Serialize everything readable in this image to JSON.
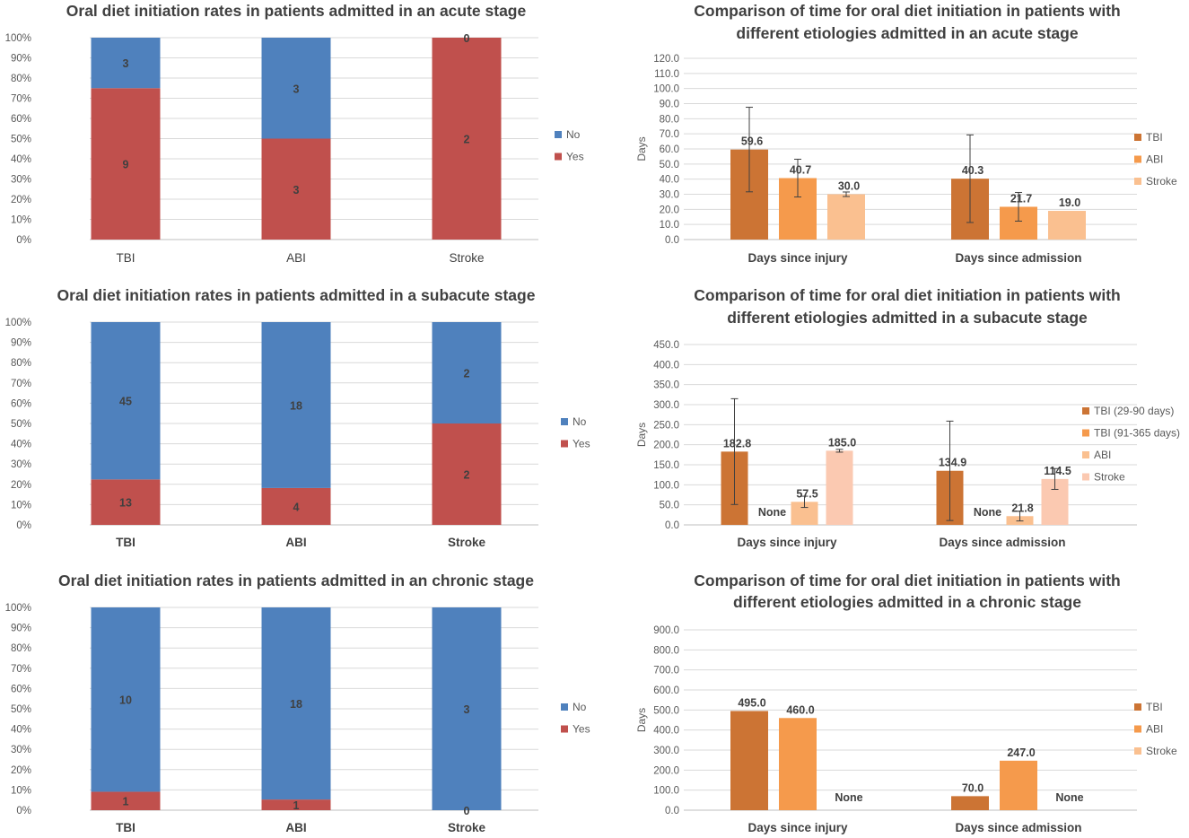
{
  "colors": {
    "no": "#4f81bd",
    "yes": "#c0504d",
    "dark_orange": "#cc7434",
    "orange": "#f59a4c",
    "light_orange": "#fac090",
    "peach": "#fbc9b1"
  },
  "chart_data": [
    {
      "id": "acute-rates",
      "type": "bar",
      "stacked": "percent",
      "title": [
        "Oral diet initiation rates in patients admitted in an acute stage"
      ],
      "categories": [
        "TBI",
        "ABI",
        "Stroke"
      ],
      "category_bold": false,
      "yticks": [
        "0%",
        "10%",
        "20%",
        "30%",
        "40%",
        "50%",
        "60%",
        "70%",
        "80%",
        "90%",
        "100%"
      ],
      "series": [
        {
          "name": "Yes",
          "color": "#c0504d",
          "values": [
            9,
            3,
            2
          ],
          "labels": [
            "9",
            "3",
            "2"
          ]
        },
        {
          "name": "No",
          "color": "#4f81bd",
          "values": [
            3,
            3,
            0
          ],
          "labels": [
            "3",
            "3",
            "0"
          ]
        }
      ],
      "legend": [
        "No",
        "Yes"
      ]
    },
    {
      "id": "acute-time",
      "type": "bar",
      "title": [
        "Comparison of time for oral diet initiation in patients with",
        "different etiologies admitted in an acute stage"
      ],
      "ylabel": "Days",
      "ylim": [
        0,
        120
      ],
      "ystep": 10,
      "categories": [
        "Days since injury",
        "Days since admission"
      ],
      "series": [
        {
          "name": "TBI",
          "color": "#cc7434",
          "values": [
            59.6,
            40.3
          ],
          "labels": [
            "59.6",
            "40.3"
          ],
          "err": [
            28,
            29
          ]
        },
        {
          "name": "ABI",
          "color": "#f59a4c",
          "values": [
            40.7,
            21.7
          ],
          "labels": [
            "40.7",
            "21.7"
          ],
          "err": [
            12.5,
            9.5
          ]
        },
        {
          "name": "Stroke",
          "color": "#fac090",
          "values": [
            30.0,
            19.0
          ],
          "labels": [
            "30.0",
            "19.0"
          ],
          "err": [
            1.5,
            0
          ]
        }
      ]
    },
    {
      "id": "subacute-rates",
      "type": "bar",
      "stacked": "percent",
      "title": [
        "Oral diet initiation rates in patients admitted in a subacute stage"
      ],
      "categories": [
        "TBI",
        "ABI",
        "Stroke"
      ],
      "category_bold": true,
      "yticks": [
        "0%",
        "10%",
        "20%",
        "30%",
        "40%",
        "50%",
        "60%",
        "70%",
        "80%",
        "90%",
        "100%"
      ],
      "series": [
        {
          "name": "Yes",
          "color": "#c0504d",
          "values": [
            13,
            4,
            2
          ],
          "labels": [
            "13",
            "4",
            "2"
          ]
        },
        {
          "name": "No",
          "color": "#4f81bd",
          "values": [
            45,
            18,
            2
          ],
          "labels": [
            "45",
            "18",
            "2"
          ]
        }
      ],
      "legend": [
        "No",
        "Yes"
      ]
    },
    {
      "id": "subacute-time",
      "type": "bar",
      "title": [
        "Comparison of time for oral diet initiation in patients with",
        "different etiologies admitted in a subacute stage"
      ],
      "ylabel": "Days",
      "ylim": [
        0,
        450
      ],
      "ystep": 50,
      "categories": [
        "Days since injury",
        "Days since admission"
      ],
      "series": [
        {
          "name": "TBI (29-90 days)",
          "color": "#cc7434",
          "values": [
            182.8,
            134.9
          ],
          "labels": [
            "182.8",
            "134.9"
          ],
          "err": [
            132,
            124
          ]
        },
        {
          "name": "TBI (91-365 days)",
          "color": "#f59a4c",
          "values": [
            null,
            null
          ],
          "labels": [
            "None",
            "None"
          ],
          "err": [
            0,
            0
          ]
        },
        {
          "name": "ABI",
          "color": "#fac090",
          "values": [
            57.5,
            21.8
          ],
          "labels": [
            "57.5",
            "21.8"
          ],
          "err": [
            14,
            12
          ]
        },
        {
          "name": "Stroke",
          "color": "#fbc9b1",
          "values": [
            185.0,
            114.5
          ],
          "labels": [
            "185.0",
            "114.5"
          ],
          "err": [
            3.5,
            26
          ]
        }
      ]
    },
    {
      "id": "chronic-rates",
      "type": "bar",
      "stacked": "percent",
      "title": [
        "Oral diet initiation rates in patients admitted in an chronic stage"
      ],
      "categories": [
        "TBI",
        "ABI",
        "Stroke"
      ],
      "category_bold": true,
      "yticks": [
        "0%",
        "10%",
        "20%",
        "30%",
        "40%",
        "50%",
        "60%",
        "70%",
        "80%",
        "90%",
        "100%"
      ],
      "series": [
        {
          "name": "Yes",
          "color": "#c0504d",
          "values": [
            1,
            1,
            0
          ],
          "labels": [
            "1",
            "1",
            "0"
          ]
        },
        {
          "name": "No",
          "color": "#4f81bd",
          "values": [
            10,
            18,
            3
          ],
          "labels": [
            "10",
            "18",
            "3"
          ]
        }
      ],
      "legend": [
        "No",
        "Yes"
      ]
    },
    {
      "id": "chronic-time",
      "type": "bar",
      "title": [
        "Comparison of time for oral diet initiation in patients with",
        "different etiologies admitted in a chronic stage"
      ],
      "ylabel": "Days",
      "ylim": [
        0,
        900
      ],
      "ystep": 100,
      "categories": [
        "Days since injury",
        "Days since admission"
      ],
      "series": [
        {
          "name": "TBI",
          "color": "#cc7434",
          "values": [
            495.0,
            70.0
          ],
          "labels": [
            "495.0",
            "70.0"
          ],
          "err": [
            0,
            0
          ]
        },
        {
          "name": "ABI",
          "color": "#f59a4c",
          "values": [
            460.0,
            247.0
          ],
          "labels": [
            "460.0",
            "247.0"
          ],
          "err": [
            0,
            0
          ]
        },
        {
          "name": "Stroke",
          "color": "#fac090",
          "values": [
            null,
            null
          ],
          "labels": [
            "None",
            "None"
          ],
          "err": [
            0,
            0
          ]
        }
      ]
    }
  ]
}
